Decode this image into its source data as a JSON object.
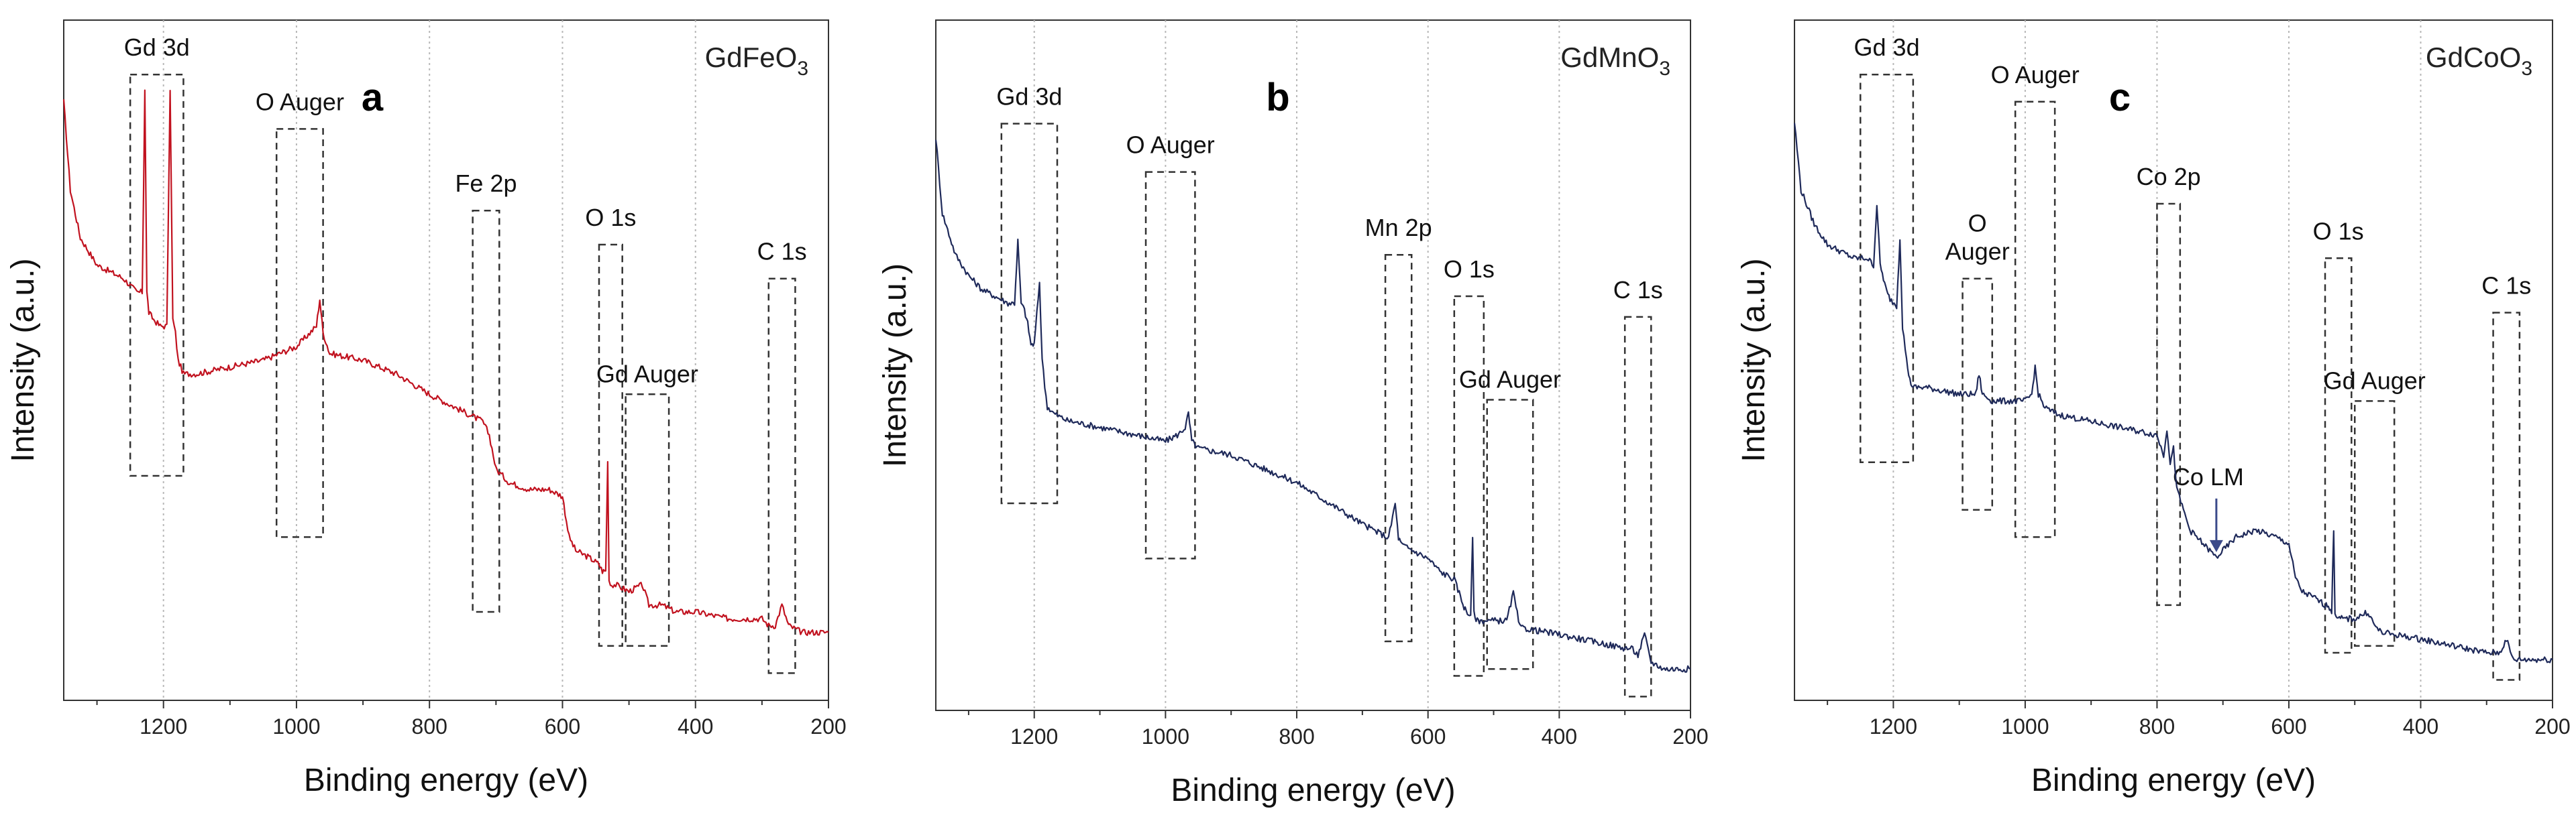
{
  "chart_data": [
    {
      "type": "line",
      "panel_label": "a",
      "compound": {
        "base": "GdFeO",
        "sub": "3"
      },
      "xlabel": "Binding energy (eV)",
      "ylabel": "Intensity (a.u.)",
      "xlim": [
        1350,
        200
      ],
      "ylim": [
        0,
        100
      ],
      "x_reversed": true,
      "xticks": [
        1200,
        1000,
        800,
        600,
        400,
        200
      ],
      "grid": "vertical dotted",
      "line_color": "#c1121f",
      "series": [
        {
          "name": "GdFeO3",
          "x": [
            1350,
            1340,
            1325,
            1300,
            1280,
            1260,
            1240,
            1232,
            1228,
            1225,
            1222,
            1215,
            1205,
            1195,
            1190,
            1186,
            1182,
            1178,
            1170,
            1150,
            1100,
            1050,
            1000,
            980,
            970,
            965,
            960,
            950,
            900,
            850,
            800,
            780,
            760,
            740,
            720,
            710,
            700,
            690,
            680,
            650,
            620,
            600,
            590,
            580,
            560,
            545,
            540,
            535,
            532,
            530,
            528,
            520,
            500,
            480,
            470,
            450,
            430,
            400,
            350,
            300,
            290,
            280,
            270,
            260,
            240,
            220,
            200
          ],
          "y": [
            88,
            75,
            68,
            64,
            63,
            62,
            60,
            60,
            90,
            60,
            57,
            56,
            55,
            55,
            90,
            56,
            54,
            50,
            48,
            48,
            49,
            50,
            52,
            54,
            55,
            59,
            54,
            51,
            50,
            48,
            45,
            44,
            43,
            42,
            41,
            39,
            34,
            33,
            32,
            31,
            31,
            30,
            24,
            22,
            21,
            20,
            19,
            19,
            35,
            18,
            17,
            17,
            16,
            17,
            14,
            14,
            13,
            13,
            12,
            12,
            11,
            11,
            14,
            11,
            10,
            10,
            10
          ]
        }
      ],
      "regions": [
        {
          "label": "Gd 3d",
          "x_range": [
            1250,
            1170
          ],
          "y_range": [
            33,
            92
          ]
        },
        {
          "label": "O Auger",
          "x_range": [
            1030,
            960
          ],
          "y_range": [
            24,
            84
          ]
        },
        {
          "label": "Fe 2p",
          "x_range": [
            735,
            695
          ],
          "y_range": [
            13,
            72
          ]
        },
        {
          "label": "O 1s",
          "x_range": [
            545,
            510
          ],
          "y_range": [
            8,
            67
          ]
        },
        {
          "label": "Gd Auger",
          "x_range": [
            505,
            440
          ],
          "y_range": [
            8,
            45
          ]
        },
        {
          "label": "C 1s",
          "x_range": [
            290,
            250
          ],
          "y_range": [
            4,
            62
          ]
        }
      ]
    },
    {
      "type": "line",
      "panel_label": "b",
      "compound": {
        "base": "GdMnO",
        "sub": "3"
      },
      "xlabel": "Binding energy (eV)",
      "ylabel": "Intensity (a.u.)",
      "xlim": [
        1350,
        200
      ],
      "ylim": [
        0,
        100
      ],
      "x_reversed": true,
      "xticks": [
        1200,
        1000,
        800,
        600,
        400,
        200
      ],
      "grid": "vertical dotted",
      "line_color": "#1f2a5a",
      "series": [
        {
          "name": "GdMnO3",
          "x": [
            1350,
            1340,
            1320,
            1300,
            1280,
            1260,
            1240,
            1230,
            1225,
            1220,
            1215,
            1210,
            1205,
            1200,
            1192,
            1188,
            1184,
            1180,
            1170,
            1150,
            1100,
            1050,
            1000,
            980,
            970,
            965,
            960,
            950,
            900,
            850,
            800,
            750,
            700,
            660,
            650,
            645,
            640,
            600,
            580,
            560,
            545,
            540,
            535,
            532,
            530,
            525,
            520,
            500,
            480,
            470,
            460,
            400,
            350,
            300,
            290,
            280,
            270,
            260,
            240,
            220,
            200
          ],
          "y": [
            83,
            72,
            66,
            63,
            61,
            60,
            59,
            59,
            68,
            59,
            58,
            56,
            53,
            53,
            62,
            51,
            47,
            44,
            43,
            42,
            41,
            40,
            39,
            40,
            41,
            43,
            39,
            38,
            37,
            35,
            33,
            30,
            27,
            25,
            30,
            25,
            24,
            22,
            20,
            19,
            15,
            14,
            14,
            25,
            14,
            13,
            13,
            13,
            13,
            17,
            12,
            11,
            10,
            9,
            9,
            8,
            11,
            7,
            6,
            6,
            6
          ]
        }
      ],
      "regions": [
        {
          "label": "Gd 3d",
          "x_range": [
            1250,
            1165
          ],
          "y_range": [
            30,
            85
          ]
        },
        {
          "label": "O Auger",
          "x_range": [
            1030,
            955
          ],
          "y_range": [
            22,
            78
          ]
        },
        {
          "label": "Mn 2p",
          "x_range": [
            665,
            625
          ],
          "y_range": [
            10,
            66
          ]
        },
        {
          "label": "O 1s",
          "x_range": [
            560,
            515
          ],
          "y_range": [
            5,
            60
          ]
        },
        {
          "label": "Gd Auger",
          "x_range": [
            510,
            440
          ],
          "y_range": [
            6,
            45
          ]
        },
        {
          "label": "C 1s",
          "x_range": [
            300,
            260
          ],
          "y_range": [
            2,
            57
          ]
        }
      ]
    },
    {
      "type": "line",
      "panel_label": "c",
      "compound": {
        "base": "GdCoO",
        "sub": "3"
      },
      "xlabel": "Binding energy (eV)",
      "ylabel": "Intensity (a.u.)",
      "xlim": [
        1350,
        200
      ],
      "ylim": [
        0,
        100
      ],
      "x_reversed": true,
      "xticks": [
        1200,
        1000,
        800,
        600,
        400,
        200
      ],
      "grid": "vertical dotted",
      "line_color": "#1f2a5a",
      "series": [
        {
          "name": "GdCoO3",
          "x": [
            1350,
            1340,
            1320,
            1300,
            1280,
            1260,
            1240,
            1230,
            1225,
            1220,
            1215,
            1210,
            1205,
            1195,
            1190,
            1186,
            1180,
            1175,
            1170,
            1150,
            1100,
            1075,
            1070,
            1065,
            1050,
            1000,
            990,
            985,
            980,
            970,
            950,
            900,
            850,
            800,
            790,
            785,
            780,
            775,
            770,
            760,
            750,
            720,
            710,
            700,
            680,
            650,
            620,
            600,
            590,
            580,
            560,
            545,
            540,
            535,
            532,
            530,
            525,
            520,
            500,
            480,
            470,
            460,
            400,
            350,
            300,
            290,
            280,
            270,
            260,
            240,
            220,
            200
          ],
          "y": [
            85,
            75,
            70,
            67,
            66,
            65,
            65,
            64,
            73,
            64,
            62,
            60,
            59,
            58,
            68,
            55,
            50,
            47,
            46,
            46,
            45,
            45,
            48,
            45,
            44,
            44,
            45,
            49,
            45,
            43,
            42,
            41,
            40,
            39,
            36,
            40,
            35,
            37,
            31,
            28,
            25,
            22,
            21,
            22,
            24,
            25,
            24,
            23,
            18,
            16,
            15,
            14,
            14,
            13,
            25,
            13,
            12,
            12,
            12,
            13,
            11,
            10,
            9,
            8,
            7,
            7,
            7,
            9,
            6,
            6,
            6,
            6
          ]
        }
      ],
      "regions": [
        {
          "label": "Gd 3d",
          "x_range": [
            1250,
            1170
          ],
          "y_range": [
            35,
            92
          ]
        },
        {
          "label": "O Auger",
          "x_range": [
            1095,
            1050
          ],
          "y_range": [
            28,
            62
          ]
        },
        {
          "label": "O Auger",
          "x_range": [
            1015,
            955
          ],
          "y_range": [
            24,
            88
          ]
        },
        {
          "label": "Co 2p",
          "x_range": [
            800,
            765
          ],
          "y_range": [
            14,
            73
          ]
        },
        {
          "label": "O 1s",
          "x_range": [
            545,
            505
          ],
          "y_range": [
            7,
            65
          ]
        },
        {
          "label": "Gd Auger",
          "x_range": [
            500,
            440
          ],
          "y_range": [
            8,
            44
          ]
        },
        {
          "label": "C 1s",
          "x_range": [
            290,
            250
          ],
          "y_range": [
            3,
            57
          ]
        }
      ],
      "annotations": [
        {
          "label": "Co LM",
          "arrow_to_x": 710
        }
      ]
    }
  ]
}
